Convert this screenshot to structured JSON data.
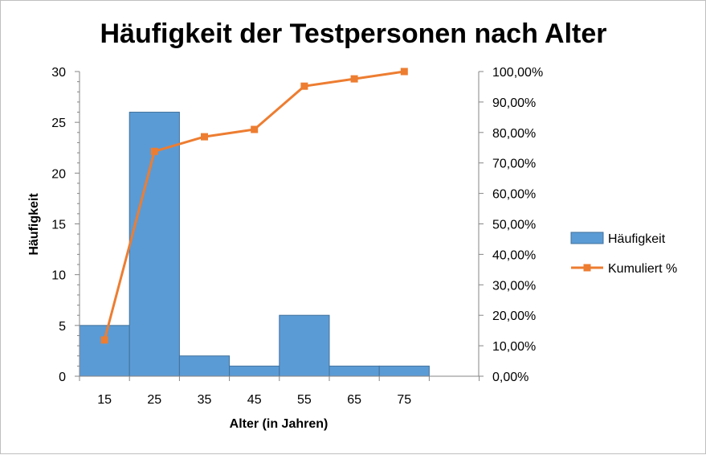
{
  "chart_data": {
    "type": "bar",
    "title": "Häufigkeit der Testpersonen nach Alter",
    "xlabel": "Alter (in Jahren)",
    "ylabel": "Häufigkeit",
    "categories": [
      "15",
      "25",
      "35",
      "45",
      "55",
      "65",
      "75"
    ],
    "y_ticks": [
      "0",
      "5",
      "10",
      "15",
      "20",
      "25",
      "30"
    ],
    "y2_ticks": [
      "0,00%",
      "10,00%",
      "20,00%",
      "30,00%",
      "40,00%",
      "50,00%",
      "60,00%",
      "70,00%",
      "80,00%",
      "90,00%",
      "100,00%"
    ],
    "ylim": [
      0,
      30
    ],
    "y2lim": [
      0,
      100
    ],
    "grid": false,
    "legend_position": "right",
    "series": [
      {
        "name": "Häufigkeit",
        "type": "bar",
        "axis": "left",
        "color": "#5b9bd5",
        "values": [
          5,
          26,
          2,
          1,
          6,
          1,
          1
        ]
      },
      {
        "name": "Kumuliert %",
        "type": "line",
        "axis": "right",
        "color": "#ed7d31",
        "values": [
          11.9,
          73.8,
          78.6,
          81.0,
          95.2,
          97.6,
          100.0
        ]
      }
    ]
  }
}
